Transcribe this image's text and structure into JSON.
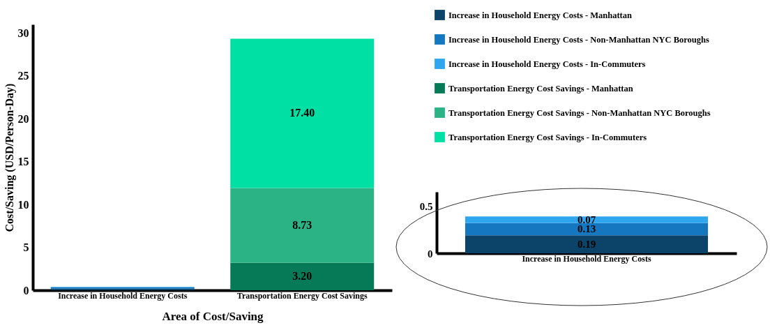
{
  "chart_data": [
    {
      "type": "bar",
      "stacked": true,
      "categories": [
        "Increase in Household Energy Costs",
        "Transportation Energy Cost Savings"
      ],
      "xlabel": "Area of Cost/Saving",
      "ylabel": "Cost/Saving (USD/Person-Day)",
      "ylim": [
        0,
        31
      ],
      "yticks": [
        0,
        5,
        10,
        15,
        20,
        25,
        30
      ],
      "legend": "right",
      "series": [
        {
          "name": "Increase in Household Energy Costs - Manhattan",
          "color": "#0b4468",
          "values": [
            0.19,
            null
          ]
        },
        {
          "name": "Increase in Household Energy Costs - Non-Manhattan NYC Boroughs",
          "color": "#1477c0",
          "values": [
            0.13,
            null
          ]
        },
        {
          "name": "Increase in Household Energy Costs - In-Commuters",
          "color": "#30a6ef",
          "values": [
            0.07,
            null
          ]
        },
        {
          "name": "Transportation Energy Cost Savings - Manhattan",
          "color": "#067a56",
          "values": [
            null,
            3.2
          ],
          "value_labels": [
            null,
            "3.20"
          ]
        },
        {
          "name": "Transportation Energy Cost Savings - Non-Manhattan NYC Boroughs",
          "color": "#2bb385",
          "values": [
            null,
            8.73
          ],
          "value_labels": [
            null,
            "8.73"
          ]
        },
        {
          "name": "Transportation Energy Cost Savings - In-Commuters",
          "color": "#00e0a4",
          "values": [
            null,
            17.4
          ],
          "value_labels": [
            null,
            "17.40"
          ]
        }
      ]
    },
    {
      "type": "bar",
      "stacked": true,
      "categories": [
        "Increase in Household Energy Costs"
      ],
      "ylim": [
        0,
        0.65
      ],
      "yticks": [
        0,
        0.5
      ],
      "data_labels": true,
      "series": [
        {
          "color": "#0b4468",
          "values": [
            0.19
          ]
        },
        {
          "color": "#1477c0",
          "values": [
            0.13
          ]
        },
        {
          "color": "#30a6ef",
          "values": [
            0.07
          ]
        }
      ]
    }
  ]
}
